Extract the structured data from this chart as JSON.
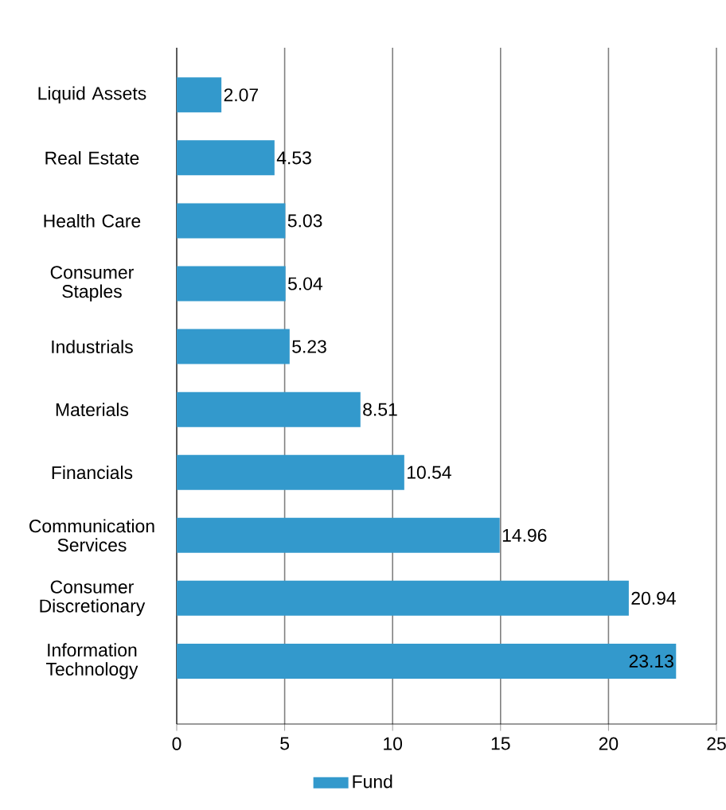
{
  "chart_data": {
    "type": "bar",
    "orientation": "horizontal",
    "categories": [
      "Liquid Assets",
      "Real Estate",
      "Health Care",
      "Consumer Staples",
      "Industrials",
      "Materials",
      "Financials",
      "Communication Services",
      "Consumer Discretionary",
      "Information Technology"
    ],
    "series": [
      {
        "name": "Fund",
        "color": "#3399cc",
        "values": [
          2.07,
          4.53,
          5.03,
          5.04,
          5.23,
          8.51,
          10.54,
          14.96,
          20.94,
          23.13
        ]
      }
    ],
    "xlim": [
      0,
      25
    ],
    "xticks": [
      0,
      5,
      10,
      15,
      20,
      25
    ],
    "grid": "x",
    "legend": "bottom",
    "data_labels": true
  }
}
